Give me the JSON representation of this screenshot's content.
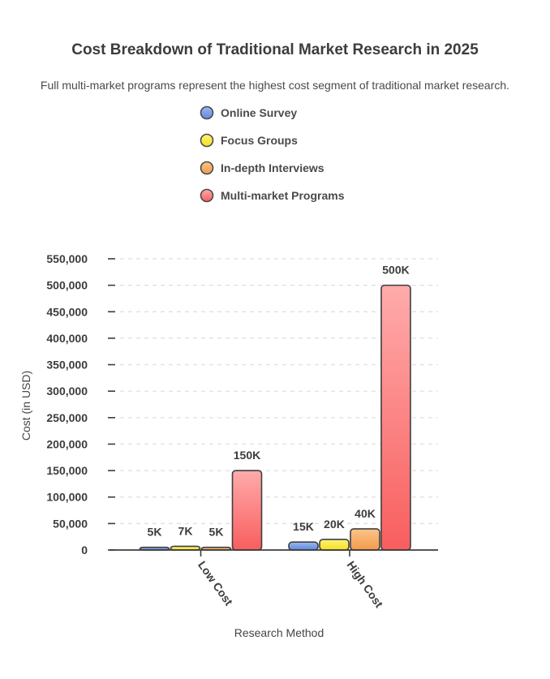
{
  "chart_data": {
    "type": "bar",
    "title": "Cost Breakdown of Traditional Market Research in 2025",
    "subtitle": "Full multi-market programs represent the highest cost segment of traditional market research.",
    "xlabel": "Research Method",
    "ylabel": "Cost (in USD)",
    "categories": [
      "Low Cost",
      "High Cost"
    ],
    "series": [
      {
        "name": "Online Survey",
        "values": [
          5000,
          15000
        ],
        "labels": [
          "5K",
          "15K"
        ],
        "color_top": "#9bb7ee",
        "color_bottom": "#5f8be0"
      },
      {
        "name": "Focus Groups",
        "values": [
          7000,
          20000
        ],
        "labels": [
          "7K",
          "20K"
        ],
        "color_top": "#fff27a",
        "color_bottom": "#f5e020"
      },
      {
        "name": "In-depth Interviews",
        "values": [
          5000,
          40000
        ],
        "labels": [
          "5K",
          "40K"
        ],
        "color_top": "#fbc48a",
        "color_bottom": "#f39b4c"
      },
      {
        "name": "Multi-market Programs",
        "values": [
          150000,
          500000
        ],
        "labels": [
          "150K",
          "500K"
        ],
        "color_top": "#ffabab",
        "color_bottom": "#f85e5e"
      }
    ],
    "ylim": [
      0,
      550000
    ],
    "yticks": [
      0,
      50000,
      100000,
      150000,
      200000,
      250000,
      300000,
      350000,
      400000,
      450000,
      500000,
      550000
    ],
    "ytick_labels": [
      "0",
      "50,000",
      "100,000",
      "150,000",
      "200,000",
      "250,000",
      "300,000",
      "350,000",
      "400,000",
      "450,000",
      "500,000",
      "550,000"
    ],
    "grid": true,
    "legend_position": "top-center"
  }
}
